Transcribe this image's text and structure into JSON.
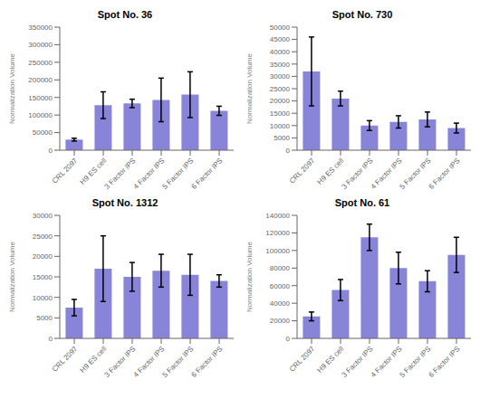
{
  "chart_data": [
    {
      "type": "bar",
      "title": "Spot No. 36",
      "y_label": "Normalization Volume",
      "categories": [
        "CRL 2097",
        "H9 ES cell",
        "3 Factor IPS",
        "4 Factor IPS",
        "5 Factor IPS",
        "6 Factor IPS"
      ],
      "values": [
        30000,
        128000,
        133000,
        143000,
        158000,
        112000
      ],
      "errors": [
        4000,
        38000,
        12000,
        62000,
        65000,
        13000
      ],
      "color": "#8884d8",
      "ylim": [
        0,
        350000
      ],
      "yticks": [
        0,
        50000,
        100000,
        150000,
        200000,
        250000,
        300000,
        350000
      ]
    },
    {
      "type": "bar",
      "title": "Spot No. 730",
      "y_label": "Normalization Volume",
      "categories": [
        "CRL 2097",
        "H9 ES cell",
        "3 Factor IPS",
        "4 Factor IPS",
        "5 Factor IPS",
        "6 Factor IPS"
      ],
      "values": [
        32000,
        21000,
        10000,
        11500,
        12500,
        9000
      ],
      "errors": [
        14000,
        3000,
        2000,
        2500,
        3000,
        2000
      ],
      "color": "#8884d8",
      "ylim": [
        0,
        50000
      ],
      "yticks": [
        0,
        5000,
        10000,
        15000,
        20000,
        25000,
        30000,
        35000,
        40000,
        45000,
        50000
      ]
    },
    {
      "type": "bar",
      "title": "Spot No. 1312",
      "y_label": "Normalization Volume",
      "categories": [
        "CRL 2097",
        "H9 ES cell",
        "3 Factor IPS",
        "4 Factor IPS",
        "5 Factor IPS",
        "6 Factor IPS"
      ],
      "values": [
        7500,
        17000,
        15000,
        16500,
        15500,
        14000
      ],
      "errors": [
        2000,
        8000,
        3500,
        4000,
        5000,
        1500
      ],
      "color": "#8884d8",
      "ylim": [
        0,
        30000
      ],
      "yticks": [
        0,
        5000,
        10000,
        15000,
        20000,
        25000,
        30000
      ]
    },
    {
      "type": "bar",
      "title": "Spot No. 61",
      "y_label": "Normalization Volume",
      "categories": [
        "CRL 2097",
        "H9 ES cell",
        "3 Factor IPS",
        "4 Factor IPS",
        "5 Factor IPS",
        "6 Factor IPS"
      ],
      "values": [
        25000,
        55000,
        115000,
        80000,
        65000,
        95000
      ],
      "errors": [
        5000,
        12000,
        15000,
        18000,
        12000,
        20000
      ],
      "color": "#8884d8",
      "ylim": [
        0,
        140000
      ],
      "yticks": [
        0,
        20000,
        40000,
        60000,
        80000,
        100000,
        120000,
        140000
      ]
    }
  ]
}
